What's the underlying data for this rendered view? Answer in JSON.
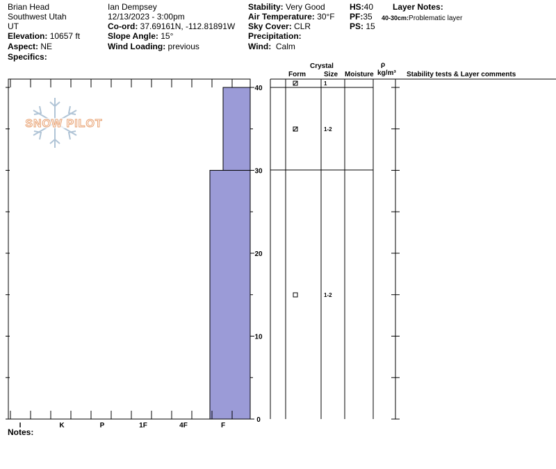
{
  "header": {
    "location": "Brian Head",
    "region": "Southwest Utah",
    "state": "UT",
    "elevation_label": "Elevation:",
    "elevation_value": "10657 ft",
    "aspect_label": "Aspect:",
    "aspect_value": "NE",
    "specifics_label": "Specifics:",
    "observer": "Ian Dempsey",
    "datetime": "12/13/2023 - 3:00pm",
    "coord_label": "Co-ord:",
    "coord_value": "37.69161N, -112.81891W",
    "slope_label": "Slope Angle:",
    "slope_value": "15°",
    "wind_loading_label": "Wind Loading:",
    "wind_loading_value": "previous",
    "stability_label": "Stability:",
    "stability_value": "Very Good",
    "air_temp_label": "Air Temperature:",
    "air_temp_value": "30°F",
    "sky_label": "Sky Cover:",
    "sky_value": "CLR",
    "precip_label": "Precipitation:",
    "precip_value": "",
    "wind_label": "Wind:",
    "wind_value": "Calm",
    "hs_label": "HS:",
    "hs_value": "40",
    "pf_label": "PF:",
    "pf_value": "35",
    "ps_label": "PS:",
    "ps_value": "15",
    "layer_notes_label": "Layer Notes:",
    "layer_note_range": "40-30cm:",
    "layer_note_text": "Problematic layer"
  },
  "logo_text": "SNOW PILOT",
  "columns": {
    "crystal": "Crystal",
    "form": "Form",
    "size": "Size",
    "moisture": "Moisture",
    "rho": "ρ",
    "density_unit": "kg/m³",
    "comments": "Stability tests & Layer comments"
  },
  "hardness_scale": [
    "I",
    "K",
    "P",
    "1F",
    "4F",
    "F"
  ],
  "depth_ticks": [
    "0",
    "10",
    "20",
    "30",
    "40"
  ],
  "layers": [
    {
      "top_cm": 40,
      "bottom_cm": 30,
      "hardness_index": 5,
      "form": "decomposing-fragments-icon",
      "size": "1-2",
      "hardness": "F"
    },
    {
      "top_cm": 30,
      "bottom_cm": 0,
      "hardness_index": 5,
      "form": "faceted-crystals-icon",
      "size": "1-2",
      "hardness": "F"
    }
  ],
  "surface_row": {
    "size": "1",
    "form": "decomposing-fragments-icon"
  },
  "chart_data": {
    "type": "bar",
    "x_scale": [
      "I",
      "K",
      "P",
      "1F",
      "4F",
      "F"
    ],
    "y_axis_ticks": [
      0,
      10,
      20,
      30,
      40
    ],
    "ylim": [
      0,
      40
    ],
    "layers": [
      {
        "from_cm": 30,
        "to_cm": 40,
        "hardness": "F"
      },
      {
        "from_cm": 0,
        "to_cm": 30,
        "hardness": "F"
      }
    ]
  },
  "notes_label": "Notes:",
  "colors": {
    "profile_fill": "#9b9bd7",
    "logo": "#e8a070",
    "flake": "#b0c4d6"
  }
}
